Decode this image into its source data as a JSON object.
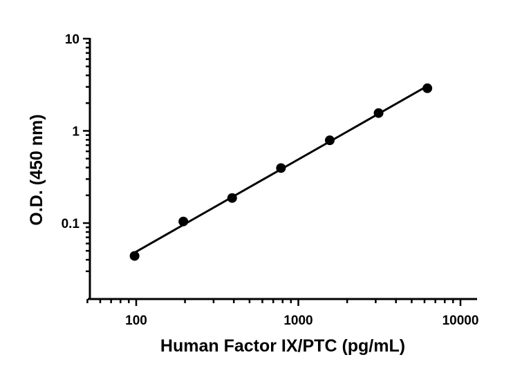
{
  "chart_data": {
    "type": "scatter",
    "title": "",
    "xlabel": "Human Factor IX/PTC (pg/mL)",
    "ylabel": "O.D. (450 nm)",
    "xscale": "log",
    "yscale": "log",
    "xlim": [
      50,
      12500
    ],
    "ylim": [
      0.0215,
      10
    ],
    "x_ticks": [
      {
        "value": 100,
        "label": "100"
      },
      {
        "value": 1000,
        "label": "1000"
      },
      {
        "value": 10000,
        "label": "10000"
      }
    ],
    "y_ticks": [
      {
        "value": 0.1,
        "label": "0.1"
      },
      {
        "value": 1,
        "label": "1"
      },
      {
        "value": 10,
        "label": "10"
      }
    ],
    "grid": false,
    "legend": "none",
    "series": [
      {
        "x": [
          97.7,
          195.3,
          390.6,
          781.3,
          1562.5,
          3125,
          6250
        ],
        "y": [
          0.044,
          0.104,
          0.187,
          0.395,
          0.79,
          1.56,
          2.9
        ],
        "marker": "circle",
        "fit_line": true
      }
    ],
    "colors": {
      "marks": "#000000",
      "axes": "#000000"
    }
  }
}
